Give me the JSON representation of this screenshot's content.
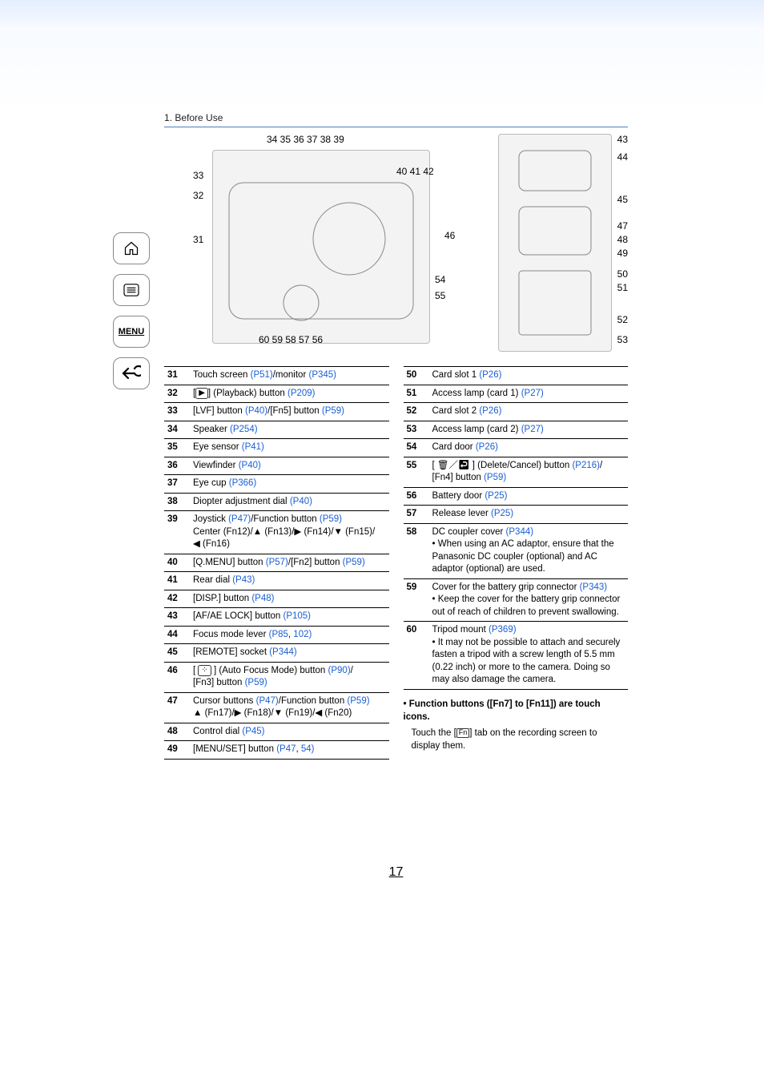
{
  "header": {
    "section": "1. Before Use"
  },
  "page_number": "17",
  "nav": {
    "home_label": "home",
    "toc_label": "toc",
    "menu_label": "MENU",
    "back_label": "back"
  },
  "diagram": {
    "top_row": "34 35 36 37 38 39",
    "mid_row": "40 41 42",
    "left_labels": {
      "l33": "33",
      "l32": "32",
      "l31": "31"
    },
    "bottom_row_a": "60    59     58     57  56",
    "bottom_row_b_54": "54",
    "bottom_row_b_55": "55",
    "right_labels": {
      "r43": "43",
      "r44": "44",
      "r45": "45",
      "r46": "46",
      "r47": "47",
      "r48": "48",
      "r49": "49",
      "r50": "50",
      "r51": "51",
      "r52": "52",
      "r53": "53"
    }
  },
  "left_items": [
    {
      "n": "31",
      "parts": [
        {
          "t": "Touch screen "
        },
        {
          "t": "(P51)",
          "link": true
        },
        {
          "t": "/monitor "
        },
        {
          "t": "(P345)",
          "link": true
        }
      ]
    },
    {
      "n": "32",
      "parts": [
        {
          "t": "["
        },
        {
          "t": "▶",
          "icon": "playback"
        },
        {
          "t": "] (Playback) button "
        },
        {
          "t": "(P209)",
          "link": true
        }
      ]
    },
    {
      "n": "33",
      "parts": [
        {
          "t": "[LVF] button "
        },
        {
          "t": "(P40)",
          "link": true
        },
        {
          "t": "/[Fn5] button "
        },
        {
          "t": "(P59)",
          "link": true
        }
      ]
    },
    {
      "n": "34",
      "parts": [
        {
          "t": "Speaker "
        },
        {
          "t": "(P254)",
          "link": true
        }
      ]
    },
    {
      "n": "35",
      "parts": [
        {
          "t": "Eye sensor "
        },
        {
          "t": "(P41)",
          "link": true
        }
      ]
    },
    {
      "n": "36",
      "parts": [
        {
          "t": "Viewfinder "
        },
        {
          "t": "(P40)",
          "link": true
        }
      ]
    },
    {
      "n": "37",
      "parts": [
        {
          "t": "Eye cup "
        },
        {
          "t": "(P366)",
          "link": true
        }
      ]
    },
    {
      "n": "38",
      "parts": [
        {
          "t": "Diopter adjustment dial "
        },
        {
          "t": "(P40)",
          "link": true
        }
      ]
    },
    {
      "n": "39",
      "parts": [
        {
          "t": "Joystick "
        },
        {
          "t": "(P47)",
          "link": true
        },
        {
          "t": "/Function button "
        },
        {
          "t": "(P59)",
          "link": true
        },
        {
          "t": "\nCenter (Fn12)/▲ (Fn13)/▶ (Fn14)/▼ (Fn15)/\n◀ (Fn16)"
        }
      ]
    },
    {
      "n": "40",
      "parts": [
        {
          "t": "[Q.MENU] button "
        },
        {
          "t": "(P57)",
          "link": true
        },
        {
          "t": "/[Fn2] button "
        },
        {
          "t": "(P59)",
          "link": true
        }
      ]
    },
    {
      "n": "41",
      "parts": [
        {
          "t": "Rear dial "
        },
        {
          "t": "(P43)",
          "link": true
        }
      ]
    },
    {
      "n": "42",
      "parts": [
        {
          "t": "[DISP.] button "
        },
        {
          "t": "(P48)",
          "link": true
        }
      ]
    },
    {
      "n": "43",
      "parts": [
        {
          "t": "[AF/AE LOCK] button "
        },
        {
          "t": "(P105)",
          "link": true
        }
      ]
    },
    {
      "n": "44",
      "parts": [
        {
          "t": "Focus mode lever "
        },
        {
          "t": "(P85",
          "link": true
        },
        {
          "t": ", "
        },
        {
          "t": "102)",
          "link": true
        }
      ]
    },
    {
      "n": "45",
      "parts": [
        {
          "t": "[REMOTE] socket "
        },
        {
          "t": "(P344)",
          "link": true
        }
      ]
    },
    {
      "n": "46",
      "parts": [
        {
          "t": "[ "
        },
        {
          "t": "⁘",
          "iconbox": true
        },
        {
          "t": " ] (Auto Focus Mode) button "
        },
        {
          "t": "(P90)",
          "link": true
        },
        {
          "t": "/\n[Fn3] button "
        },
        {
          "t": "(P59)",
          "link": true
        }
      ]
    },
    {
      "n": "47",
      "parts": [
        {
          "t": "Cursor buttons "
        },
        {
          "t": "(P47)",
          "link": true
        },
        {
          "t": "/Function button "
        },
        {
          "t": "(P59)",
          "link": true
        },
        {
          "t": "\n▲ (Fn17)/▶ (Fn18)/▼ (Fn19)/◀ (Fn20)"
        }
      ]
    },
    {
      "n": "48",
      "parts": [
        {
          "t": "Control dial "
        },
        {
          "t": "(P45)",
          "link": true
        }
      ]
    },
    {
      "n": "49",
      "parts": [
        {
          "t": "[MENU/SET] button "
        },
        {
          "t": "(P47",
          "link": true
        },
        {
          "t": ", "
        },
        {
          "t": "54)",
          "link": true
        }
      ]
    }
  ],
  "right_items": [
    {
      "n": "50",
      "parts": [
        {
          "t": "Card slot 1 "
        },
        {
          "t": "(P26)",
          "link": true
        }
      ]
    },
    {
      "n": "51",
      "parts": [
        {
          "t": "Access lamp (card 1) "
        },
        {
          "t": "(P27)",
          "link": true
        }
      ]
    },
    {
      "n": "52",
      "parts": [
        {
          "t": "Card slot 2 "
        },
        {
          "t": "(P26)",
          "link": true
        }
      ]
    },
    {
      "n": "53",
      "parts": [
        {
          "t": "Access lamp (card 2) "
        },
        {
          "t": "(P27)",
          "link": true
        }
      ]
    },
    {
      "n": "54",
      "parts": [
        {
          "t": "Card door "
        },
        {
          "t": "(P26)",
          "link": true
        }
      ]
    },
    {
      "n": "55",
      "parts": [
        {
          "t": "[ "
        },
        {
          "t": "🗑／↩",
          "icon": "deletecancel"
        },
        {
          "t": " ] (Delete/Cancel) button "
        },
        {
          "t": "(P216)",
          "link": true
        },
        {
          "t": "/\n[Fn4] button "
        },
        {
          "t": "(P59)",
          "link": true
        }
      ]
    },
    {
      "n": "56",
      "parts": [
        {
          "t": "Battery door "
        },
        {
          "t": "(P25)",
          "link": true
        }
      ]
    },
    {
      "n": "57",
      "parts": [
        {
          "t": "Release lever "
        },
        {
          "t": "(P25)",
          "link": true
        }
      ]
    },
    {
      "n": "58",
      "parts": [
        {
          "t": "DC coupler cover "
        },
        {
          "t": "(P344)",
          "link": true
        },
        {
          "t": "\n• When using an AC adaptor, ensure that the Panasonic DC coupler (optional) and AC adaptor (optional) are used."
        }
      ]
    },
    {
      "n": "59",
      "parts": [
        {
          "t": "Cover for the battery grip connector "
        },
        {
          "t": "(P343)",
          "link": true
        },
        {
          "t": "\n• Keep the cover for the battery grip connector out of reach of children to prevent swallowing."
        }
      ]
    },
    {
      "n": "60",
      "parts": [
        {
          "t": "Tripod mount "
        },
        {
          "t": "(P369)",
          "link": true
        },
        {
          "t": "\n• It may not be possible to attach and securely fasten a tripod with a screw length of 5.5 mm (0.22 inch) or more to the camera. Doing so may also damage the camera."
        }
      ]
    }
  ],
  "notes": {
    "line1a": "• Function buttons ([Fn7] to [Fn11]) are touch icons.",
    "line2a": "Touch the [",
    "line2b": "] tab on the recording screen to display them."
  }
}
